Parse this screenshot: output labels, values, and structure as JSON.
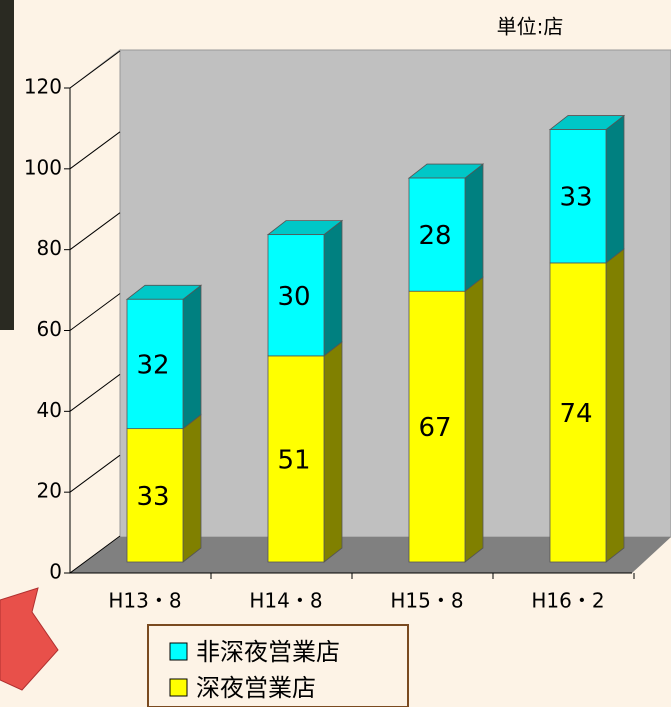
{
  "chart_data": {
    "type": "stacked-bar-3d",
    "unit_label": "単位:店",
    "categories": [
      "H13・8",
      "H14・8",
      "H15・8",
      "H16・2"
    ],
    "series": [
      {
        "name": "深夜営業店",
        "color": "#ffff00",
        "values": [
          33,
          51,
          67,
          74
        ]
      },
      {
        "name": "非深夜営業店",
        "color": "#00ffff",
        "values": [
          32,
          30,
          28,
          33
        ]
      }
    ],
    "ylim": [
      0,
      120
    ],
    "yticks": [
      0,
      20,
      40,
      60,
      80,
      100,
      120
    ]
  }
}
